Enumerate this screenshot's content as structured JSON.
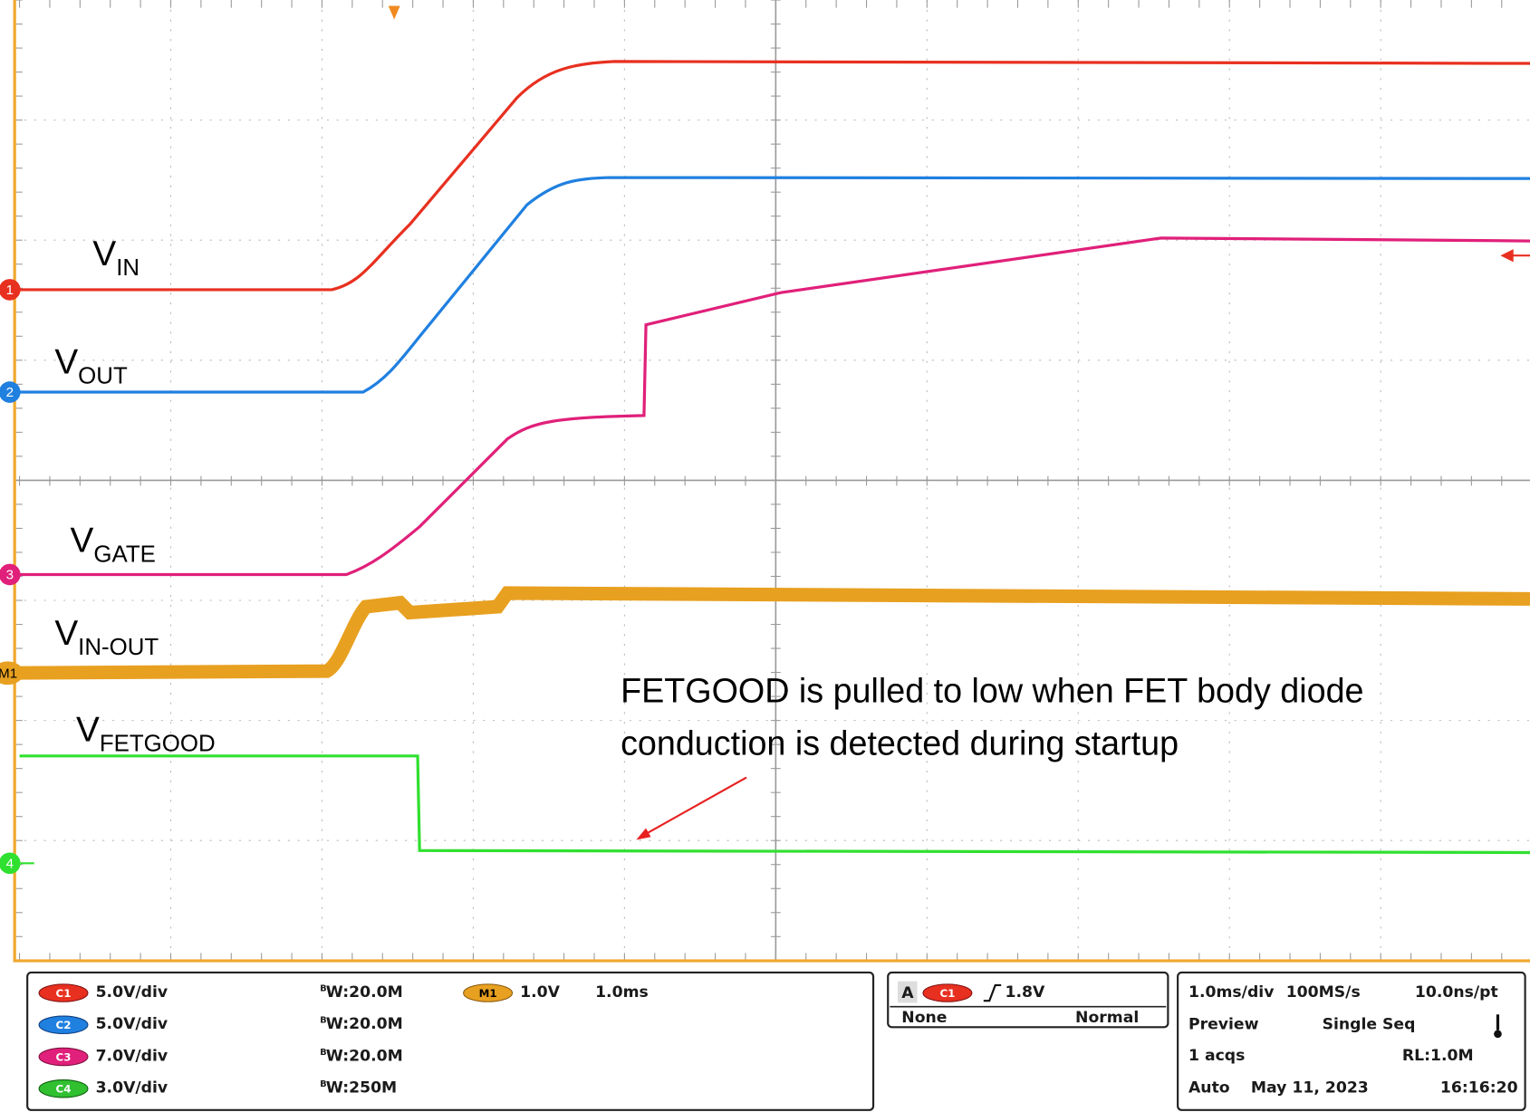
{
  "trace_labels": [
    {
      "main": "V",
      "sub": "IN"
    },
    {
      "main": "V",
      "sub": "OUT"
    },
    {
      "main": "V",
      "sub": "GATE"
    },
    {
      "main": "V",
      "sub": "IN-OUT"
    },
    {
      "main": "V",
      "sub": "FETGOOD"
    }
  ],
  "channel_markers": [
    "1",
    "2",
    "3",
    "M1",
    "4"
  ],
  "annotation": [
    "FETGOOD is pulled to low when FET body diode",
    "conduction is detected during startup"
  ],
  "channels": [
    {
      "badge": "C1",
      "scale": "5.0V/div",
      "bw_prefix": "B",
      "bandwidth": "W:20.0M"
    },
    {
      "badge": "C2",
      "scale": "5.0V/div",
      "bw_prefix": "B",
      "bandwidth": "W:20.0M"
    },
    {
      "badge": "C3",
      "scale": "7.0V/div",
      "bw_prefix": "B",
      "bandwidth": "W:20.0M"
    },
    {
      "badge": "C4",
      "scale": "3.0V/div",
      "bw_prefix": "B",
      "bandwidth": "W:250M"
    }
  ],
  "math": {
    "badge": "M1",
    "volts": "1.0V",
    "time": "1.0ms"
  },
  "trigger": {
    "source": "A",
    "badge": "C1",
    "level": "1.8V",
    "coupling": "None",
    "mode": "Normal"
  },
  "acquisition": {
    "timebase": "1.0ms/div",
    "sample_rate": "100MS/s",
    "resolution": "10.0ns/pt",
    "view": "Preview",
    "run_mode": "Single Seq",
    "count": "1 acqs",
    "record_length": "RL:1.0M",
    "trigger_mode": "Auto",
    "date": "May 11, 2023",
    "time": "16:16:20"
  }
}
